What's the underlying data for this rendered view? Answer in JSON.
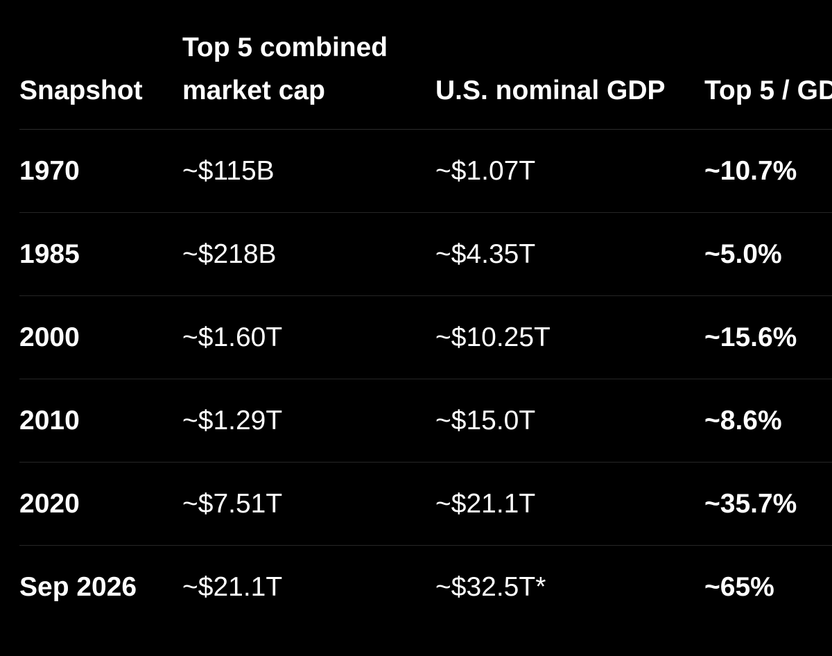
{
  "table": {
    "headers": [
      "Snapshot",
      "Top 5 combined market cap",
      "U.S. nominal GDP",
      "Top 5 / GD"
    ],
    "rows": [
      {
        "snapshot": "1970",
        "market_cap": "~$115B",
        "gdp": "~$1.07T",
        "ratio": "~10.7%"
      },
      {
        "snapshot": "1985",
        "market_cap": "~$218B",
        "gdp": "~$4.35T",
        "ratio": "~5.0%"
      },
      {
        "snapshot": "2000",
        "market_cap": "~$1.60T",
        "gdp": "~$10.25T",
        "ratio": "~15.6%"
      },
      {
        "snapshot": "2010",
        "market_cap": "~$1.29T",
        "gdp": "~$15.0T",
        "ratio": "~8.6%"
      },
      {
        "snapshot": "2020",
        "market_cap": "~$7.51T",
        "gdp": "~$21.1T",
        "ratio": "~35.7%"
      },
      {
        "snapshot": "Sep 2026",
        "market_cap": "~$21.1T",
        "gdp": "~$32.5T*",
        "ratio": "~65%"
      }
    ]
  },
  "colors": {
    "background": "#000000",
    "text": "#ffffff",
    "divider": "#2c2c2c"
  }
}
